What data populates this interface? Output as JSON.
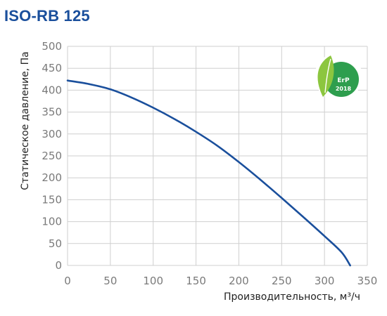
{
  "chart_data": {
    "type": "line",
    "title": "ISO-RB 125",
    "xlabel": "Производительность, м³/ч",
    "ylabel": "Статическое давление, Па",
    "xlim": [
      0,
      350
    ],
    "ylim": [
      0,
      500
    ],
    "xticks": [
      0,
      50,
      100,
      150,
      200,
      250,
      300,
      350
    ],
    "yticks": [
      0,
      50,
      100,
      150,
      200,
      250,
      300,
      350,
      400,
      450,
      500
    ],
    "grid": true,
    "series": [
      {
        "x": [
          0,
          25,
          50,
          75,
          100,
          125,
          150,
          175,
          200,
          225,
          250,
          275,
          300,
          320,
          330
        ],
        "y": [
          422,
          414,
          402,
          383,
          360,
          334,
          305,
          273,
          236,
          196,
          154,
          111,
          67,
          30,
          0
        ]
      }
    ],
    "badge": {
      "text_main": "ErP",
      "text_year": "2018"
    },
    "colors": {
      "title": "#1a4f9c",
      "line": "#1a4f9c",
      "grid": "#cfcfcf",
      "tick": "#7a7a7a",
      "badge_green": "#2e9e4e",
      "badge_light": "#8cc63f"
    }
  }
}
